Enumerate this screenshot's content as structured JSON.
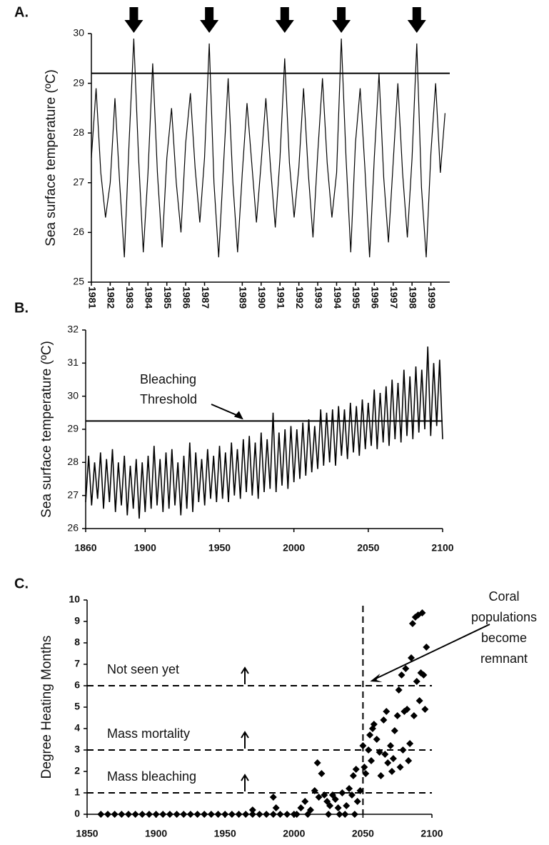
{
  "chart_data": [
    {
      "type": "line",
      "panel_label": "A.",
      "y_label": "Sea surface temperature (ºC)",
      "xlim": [
        1981,
        2000
      ],
      "ylim": [
        25,
        30
      ],
      "xticks": [
        1981,
        1982,
        1983,
        1984,
        1985,
        1986,
        1987,
        1989,
        1990,
        1991,
        1992,
        1993,
        1994,
        1995,
        1996,
        1997,
        1998,
        1999
      ],
      "yticks": [
        25,
        26,
        27,
        28,
        29,
        30
      ],
      "threshold": 29.2,
      "bleaching_years": [
        1983.25,
        1987.25,
        1991.25,
        1994.25,
        1998.25
      ],
      "x": [
        1981,
        1981.25,
        1981.5,
        1981.75,
        1982,
        1982.25,
        1982.5,
        1982.75,
        1983,
        1983.25,
        1983.5,
        1983.75,
        1984,
        1984.25,
        1984.5,
        1984.75,
        1985,
        1985.25,
        1985.5,
        1985.75,
        1986,
        1986.25,
        1986.5,
        1986.75,
        1987,
        1987.25,
        1987.5,
        1987.75,
        1988,
        1988.25,
        1988.5,
        1988.75,
        1989,
        1989.25,
        1989.5,
        1989.75,
        1990,
        1990.25,
        1990.5,
        1990.75,
        1991,
        1991.25,
        1991.5,
        1991.75,
        1992,
        1992.25,
        1992.5,
        1992.75,
        1993,
        1993.25,
        1993.5,
        1993.75,
        1994,
        1994.25,
        1994.5,
        1994.75,
        1995,
        1995.25,
        1995.5,
        1995.75,
        1996,
        1996.25,
        1996.5,
        1996.75,
        1997,
        1997.25,
        1997.5,
        1997.75,
        1998,
        1998.25,
        1998.5,
        1998.75,
        1999,
        1999.25,
        1999.5,
        1999.75
      ],
      "values": [
        27.5,
        28.9,
        27.2,
        26.3,
        27.0,
        28.7,
        27.0,
        25.5,
        27.8,
        29.9,
        27.5,
        25.6,
        27.2,
        29.4,
        27.2,
        25.7,
        27.5,
        28.5,
        27.0,
        26.0,
        27.8,
        28.8,
        27.3,
        26.2,
        27.5,
        29.8,
        27.0,
        25.5,
        27.3,
        29.1,
        27.0,
        25.6,
        27.2,
        28.6,
        27.4,
        26.2,
        27.4,
        28.7,
        27.3,
        26.1,
        27.5,
        29.5,
        27.4,
        26.3,
        27.3,
        28.9,
        27.2,
        25.9,
        27.6,
        29.1,
        27.4,
        26.3,
        27.2,
        29.9,
        27.5,
        25.6,
        27.8,
        28.9,
        27.3,
        25.5,
        27.5,
        29.2,
        27.1,
        25.8,
        27.4,
        29.0,
        27.2,
        25.9,
        27.5,
        29.8,
        26.9,
        25.5,
        27.6,
        29.0,
        27.2,
        28.4
      ]
    },
    {
      "type": "line",
      "panel_label": "B.",
      "y_label": "Sea surface temperature (ºC)",
      "xlim": [
        1860,
        2100
      ],
      "ylim": [
        26,
        32
      ],
      "xticks": [
        1860,
        1900,
        1950,
        2000,
        2050,
        2100
      ],
      "yticks": [
        26,
        27,
        28,
        29,
        30,
        31,
        32
      ],
      "threshold": 29.25,
      "threshold_label": [
        "Bleaching",
        "Threshold"
      ],
      "threshold_arrow_x": 1966,
      "x": [
        1860,
        1862,
        1864,
        1866,
        1868,
        1870,
        1872,
        1874,
        1876,
        1878,
        1880,
        1882,
        1884,
        1886,
        1888,
        1890,
        1892,
        1894,
        1896,
        1898,
        1900,
        1902,
        1904,
        1906,
        1908,
        1910,
        1912,
        1914,
        1916,
        1918,
        1920,
        1922,
        1924,
        1926,
        1928,
        1930,
        1932,
        1934,
        1936,
        1938,
        1940,
        1942,
        1944,
        1946,
        1948,
        1950,
        1952,
        1954,
        1956,
        1958,
        1960,
        1962,
        1964,
        1966,
        1968,
        1970,
        1972,
        1974,
        1976,
        1978,
        1980,
        1982,
        1984,
        1986,
        1988,
        1990,
        1992,
        1994,
        1996,
        1998,
        2000,
        2002,
        2004,
        2006,
        2008,
        2010,
        2012,
        2014,
        2016,
        2018,
        2020,
        2022,
        2024,
        2026,
        2028,
        2030,
        2032,
        2034,
        2036,
        2038,
        2040,
        2042,
        2044,
        2046,
        2048,
        2050,
        2052,
        2054,
        2056,
        2058,
        2060,
        2062,
        2064,
        2066,
        2068,
        2070,
        2072,
        2074,
        2076,
        2078,
        2080,
        2082,
        2084,
        2086,
        2088,
        2090,
        2092,
        2094,
        2096,
        2098,
        2100
      ],
      "values": [
        26.8,
        28.2,
        26.7,
        28.0,
        26.9,
        28.3,
        26.6,
        28.1,
        26.8,
        28.4,
        26.5,
        28.0,
        26.7,
        28.2,
        26.4,
        27.9,
        26.6,
        28.1,
        26.3,
        28.0,
        26.5,
        28.2,
        26.6,
        28.5,
        26.7,
        28.1,
        26.5,
        28.3,
        26.6,
        28.4,
        26.7,
        28.0,
        26.4,
        28.2,
        26.6,
        28.6,
        26.5,
        28.3,
        26.8,
        28.1,
        26.7,
        28.4,
        26.9,
        28.2,
        26.8,
        28.5,
        26.9,
        28.3,
        26.8,
        28.6,
        27.0,
        28.4,
        26.9,
        28.7,
        27.1,
        28.8,
        27.0,
        28.6,
        26.9,
        28.9,
        27.1,
        28.7,
        27.2,
        29.5,
        27.1,
        28.9,
        27.3,
        29.0,
        27.2,
        29.1,
        27.4,
        29.0,
        27.5,
        29.2,
        27.6,
        29.3,
        27.7,
        29.1,
        27.8,
        29.6,
        27.9,
        29.5,
        28.0,
        29.6,
        27.9,
        29.7,
        28.2,
        29.6,
        28.1,
        29.8,
        28.3,
        29.7,
        28.2,
        29.9,
        28.4,
        29.8,
        28.5,
        30.2,
        28.4,
        30.1,
        28.6,
        30.3,
        28.5,
        30.5,
        28.7,
        30.4,
        28.6,
        30.8,
        28.8,
        30.6,
        28.7,
        30.9,
        28.9,
        30.8,
        29.0,
        31.5,
        28.8,
        31.0,
        29.1,
        31.1,
        28.7
      ]
    },
    {
      "type": "scatter",
      "panel_label": "C.",
      "y_label": "Degree Heating Months",
      "xlim": [
        1850,
        2100
      ],
      "ylim": [
        0,
        10
      ],
      "xticks": [
        1850,
        1900,
        1950,
        2000,
        2050,
        2100
      ],
      "yticks": [
        0,
        1,
        2,
        3,
        4,
        5,
        6,
        7,
        8,
        9,
        10
      ],
      "thresholds": [
        {
          "value": 1,
          "label": "Mass bleaching"
        },
        {
          "value": 3,
          "label": "Mass mortality"
        },
        {
          "value": 6,
          "label": "Not seen yet"
        }
      ],
      "vline": 2050,
      "annotation": [
        "Coral",
        "populations",
        "become",
        "remnant"
      ],
      "x": [
        1860,
        1865,
        1870,
        1875,
        1880,
        1885,
        1890,
        1895,
        1900,
        1905,
        1910,
        1915,
        1920,
        1925,
        1930,
        1935,
        1940,
        1945,
        1950,
        1955,
        1960,
        1965,
        1970,
        1975,
        1980,
        1985,
        1990,
        1995,
        2000,
        2002,
        2010,
        2025,
        2033,
        2037,
        2044,
        1970,
        1985,
        1987,
        2005,
        2008,
        2012,
        2015,
        2017,
        2018,
        2020,
        2022,
        2024,
        2026,
        2028,
        2030,
        2032,
        2035,
        2038,
        2040,
        2042,
        2043,
        2045,
        2046,
        2048,
        2050,
        2051,
        2052,
        2054,
        2055,
        2056,
        2057,
        2058,
        2060,
        2062,
        2063,
        2065,
        2066,
        2067,
        2068,
        2070,
        2071,
        2072,
        2073,
        2075,
        2076,
        2077,
        2078,
        2079,
        2080,
        2081,
        2082,
        2083,
        2084,
        2085,
        2086,
        2087,
        2088,
        2089,
        2090,
        2091,
        2092,
        2093,
        2094,
        2095,
        2096
      ],
      "values": [
        0,
        0,
        0,
        0,
        0,
        0,
        0,
        0,
        0,
        0,
        0,
        0,
        0,
        0,
        0,
        0,
        0,
        0,
        0,
        0,
        0,
        0,
        0,
        0,
        0,
        0,
        0,
        0,
        0,
        0,
        0,
        0,
        0,
        0,
        0,
        0.2,
        0.8,
        0.3,
        0.3,
        0.6,
        0.2,
        1.1,
        2.4,
        0.8,
        1.9,
        0.9,
        0.6,
        0.4,
        0.9,
        0.7,
        0.3,
        1.0,
        0.4,
        1.2,
        0.9,
        1.8,
        2.1,
        0.6,
        1.1,
        3.2,
        2.2,
        1.9,
        3.0,
        3.7,
        2.5,
        4.0,
        4.2,
        3.5,
        2.9,
        1.8,
        4.4,
        2.8,
        4.8,
        2.4,
        3.2,
        2.0,
        2.6,
        3.9,
        4.6,
        5.8,
        2.2,
        6.5,
        3.0,
        4.8,
        6.8,
        4.9,
        2.5,
        3.3,
        7.3,
        8.9,
        4.6,
        9.2,
        6.2,
        9.3,
        5.3,
        6.6,
        9.4,
        6.5,
        4.9,
        7.8
      ]
    }
  ]
}
